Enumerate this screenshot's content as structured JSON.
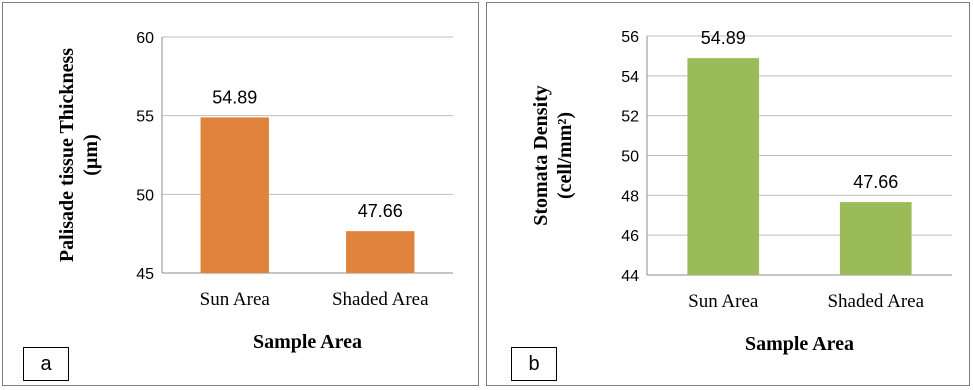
{
  "chart_data": [
    {
      "type": "bar",
      "panel_label": "a",
      "categories": [
        "Sun Area",
        "Shaded Area"
      ],
      "values": [
        54.89,
        47.66
      ],
      "data_labels": [
        "54.89",
        "47.66"
      ],
      "xlabel": "Sample Area",
      "ylabel_lines": [
        "Palisade tissue Thickness",
        "(µm)"
      ],
      "ylim": [
        45,
        60
      ],
      "yticks": [
        45,
        50,
        55,
        60
      ],
      "bar_color": "#e0843d",
      "grid": true
    },
    {
      "type": "bar",
      "panel_label": "b",
      "categories": [
        "Sun Area",
        "Shaded Area"
      ],
      "values": [
        54.89,
        47.66
      ],
      "data_labels": [
        "54.89",
        "47.66"
      ],
      "xlabel": "Sample Area",
      "ylabel_lines": [
        "Stomata Density",
        "(cell/mm²)"
      ],
      "ylim": [
        44,
        56
      ],
      "yticks": [
        44,
        46,
        48,
        50,
        52,
        54,
        56
      ],
      "bar_color": "#9bbb59",
      "grid": true
    }
  ]
}
